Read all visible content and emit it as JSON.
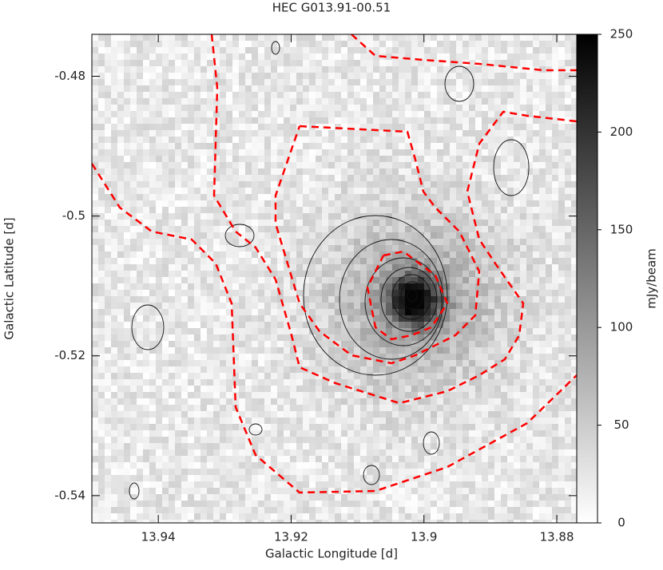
{
  "chart_data": {
    "type": "image",
    "title": "HEC G013.91-00.51",
    "x_label": "Galactic Longitude [d]",
    "y_label": "Galactic Latitude [d]",
    "colorbar_label": "mJy/beam",
    "xlim": [
      13.95,
      13.877
    ],
    "xticks": [
      13.94,
      13.92,
      13.9,
      13.88
    ],
    "ylim": [
      -0.5439,
      -0.474
    ],
    "yticks": [
      -0.48,
      -0.5,
      -0.52,
      -0.54
    ],
    "zlim": [
      0,
      250
    ],
    "zticks": [
      0,
      50,
      100,
      150,
      200,
      250
    ],
    "contour_color": "#ff0000"
  }
}
